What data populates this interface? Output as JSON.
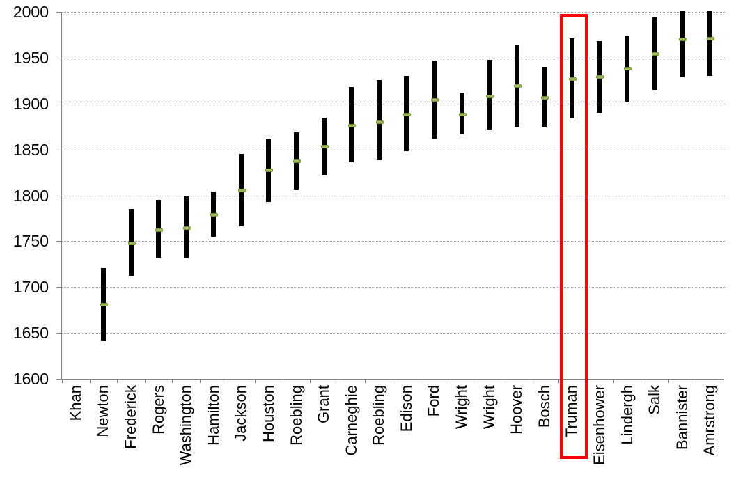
{
  "chart_data": {
    "type": "bar",
    "subtype": "high-low-range-with-marker",
    "title": "",
    "xlabel": "",
    "ylabel": "",
    "ylim": [
      1600,
      2000
    ],
    "y_ticks": [
      1600,
      1650,
      1700,
      1750,
      1800,
      1850,
      1900,
      1950,
      2000
    ],
    "grid": "horizontal-dotted",
    "legend": "none",
    "categories": [
      "Khan",
      "Newton",
      "Frederick",
      "Rogers",
      "Washington",
      "Hamilton",
      "Jackson",
      "Houston",
      "Roebling",
      "Grant",
      "Carneghie",
      "Roebling",
      "Edison",
      "Ford",
      "Wright",
      "Wright",
      "Hoover",
      "Bosch",
      "Truman",
      "Eisenhower",
      "Lindergh",
      "Salk",
      "Bannister",
      "Amrstrong"
    ],
    "series": [
      {
        "name": "range_low",
        "values": [
          null,
          1642,
          1712,
          1732,
          1732,
          1755,
          1766,
          1793,
          1806,
          1822,
          1836,
          1838,
          1848,
          1862,
          1866,
          1872,
          1874,
          1874,
          1884,
          1890,
          1902,
          1915,
          1929,
          1930
        ]
      },
      {
        "name": "range_high",
        "values": [
          null,
          1721,
          1785,
          1795,
          1799,
          1804,
          1845,
          1862,
          1869,
          1885,
          1918,
          1926,
          1930,
          1947,
          1912,
          1948,
          1964,
          1940,
          1971,
          1968,
          1974,
          1994,
          2001,
          2001
        ]
      },
      {
        "name": "marker",
        "values": [
          null,
          1681,
          1748,
          1762,
          1764,
          1779,
          1805,
          1827,
          1837,
          1853,
          1876,
          1880,
          1888,
          1904,
          1888,
          1908,
          1919,
          1906,
          1927,
          1929,
          1938,
          1954,
          1970,
          1971
        ]
      }
    ],
    "highlight": {
      "category": "Truman",
      "style": "red-rectangle-outline"
    },
    "colors": {
      "bar": "#000000",
      "marker_fill": "#9BBB59",
      "marker_border": "#77933C",
      "highlight": "#FF0000",
      "axis": "#808080",
      "gridline": "#969696",
      "text": "#000000",
      "background": "#FFFFFF"
    }
  }
}
